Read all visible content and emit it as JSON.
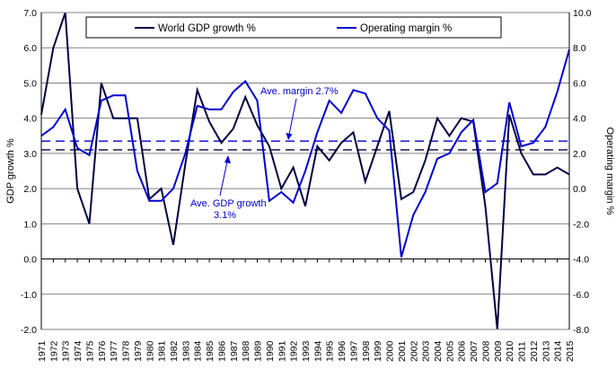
{
  "chart_data": {
    "type": "line",
    "x": [
      1971,
      1972,
      1973,
      1974,
      1975,
      1976,
      1977,
      1978,
      1979,
      1980,
      1981,
      1982,
      1983,
      1984,
      1985,
      1986,
      1987,
      1988,
      1989,
      1990,
      1991,
      1992,
      1993,
      1994,
      1995,
      1996,
      1997,
      1998,
      1999,
      2000,
      2001,
      2002,
      2003,
      2004,
      2005,
      2006,
      2007,
      2008,
      2009,
      2010,
      2011,
      2012,
      2013,
      2014,
      2015
    ],
    "series": [
      {
        "name": "World GDP growth %",
        "axis": "left",
        "color": "#000040",
        "values": [
          4.1,
          6.0,
          7.0,
          2.0,
          1.0,
          5.0,
          4.0,
          4.0,
          4.0,
          1.7,
          2.0,
          0.4,
          2.7,
          4.8,
          3.9,
          3.3,
          3.7,
          4.6,
          3.8,
          3.2,
          2.0,
          2.6,
          1.5,
          3.2,
          2.8,
          3.3,
          3.6,
          2.2,
          3.2,
          4.2,
          1.7,
          1.9,
          2.8,
          4.0,
          3.5,
          4.0,
          3.9,
          1.5,
          -2.0,
          4.1,
          3.0,
          2.4,
          2.4,
          2.6,
          2.4
        ]
      },
      {
        "name": "Operating margin %",
        "axis": "right",
        "color": "#0000cc",
        "values": [
          3.0,
          3.5,
          4.5,
          2.3,
          1.9,
          5.0,
          5.3,
          5.3,
          1.0,
          -0.7,
          -0.7,
          0.0,
          2.0,
          4.7,
          4.5,
          4.5,
          5.5,
          6.1,
          5.0,
          -0.7,
          -0.2,
          -0.8,
          1.0,
          3.2,
          5.0,
          4.3,
          5.6,
          5.4,
          4.0,
          3.3,
          -3.9,
          -1.5,
          -0.2,
          1.7,
          2.0,
          3.2,
          3.9,
          -0.2,
          0.3,
          4.9,
          2.4,
          2.6,
          3.5,
          5.5,
          7.9
        ]
      }
    ],
    "y_left": {
      "label": "GDP growth %",
      "lim": [
        -2.0,
        7.0
      ],
      "ticks": [
        "-2.0",
        "-1.0",
        "0.0",
        "1.0",
        "2.0",
        "3.0",
        "4.0",
        "5.0",
        "6.0",
        "7.0"
      ]
    },
    "y_right": {
      "label": "Operating margin %",
      "lim": [
        -8.0,
        10.0
      ],
      "ticks": [
        "-8.0",
        "-6.0",
        "-4.0",
        "-2.0",
        "0.0",
        "2.0",
        "4.0",
        "6.0",
        "8.0",
        "10.0"
      ]
    },
    "reference_lines": [
      {
        "axis": "left",
        "value": 3.1,
        "color": "#000040"
      },
      {
        "axis": "right",
        "value": 2.7,
        "color": "#0000cc"
      }
    ],
    "annotations": [
      {
        "id": "margin",
        "text": "Ave. margin 2.7%"
      },
      {
        "id": "gdp",
        "line1": "Ave. GDP growth",
        "line2": "3.1%"
      }
    ],
    "legend_position": "top",
    "grid": "horizontal"
  }
}
